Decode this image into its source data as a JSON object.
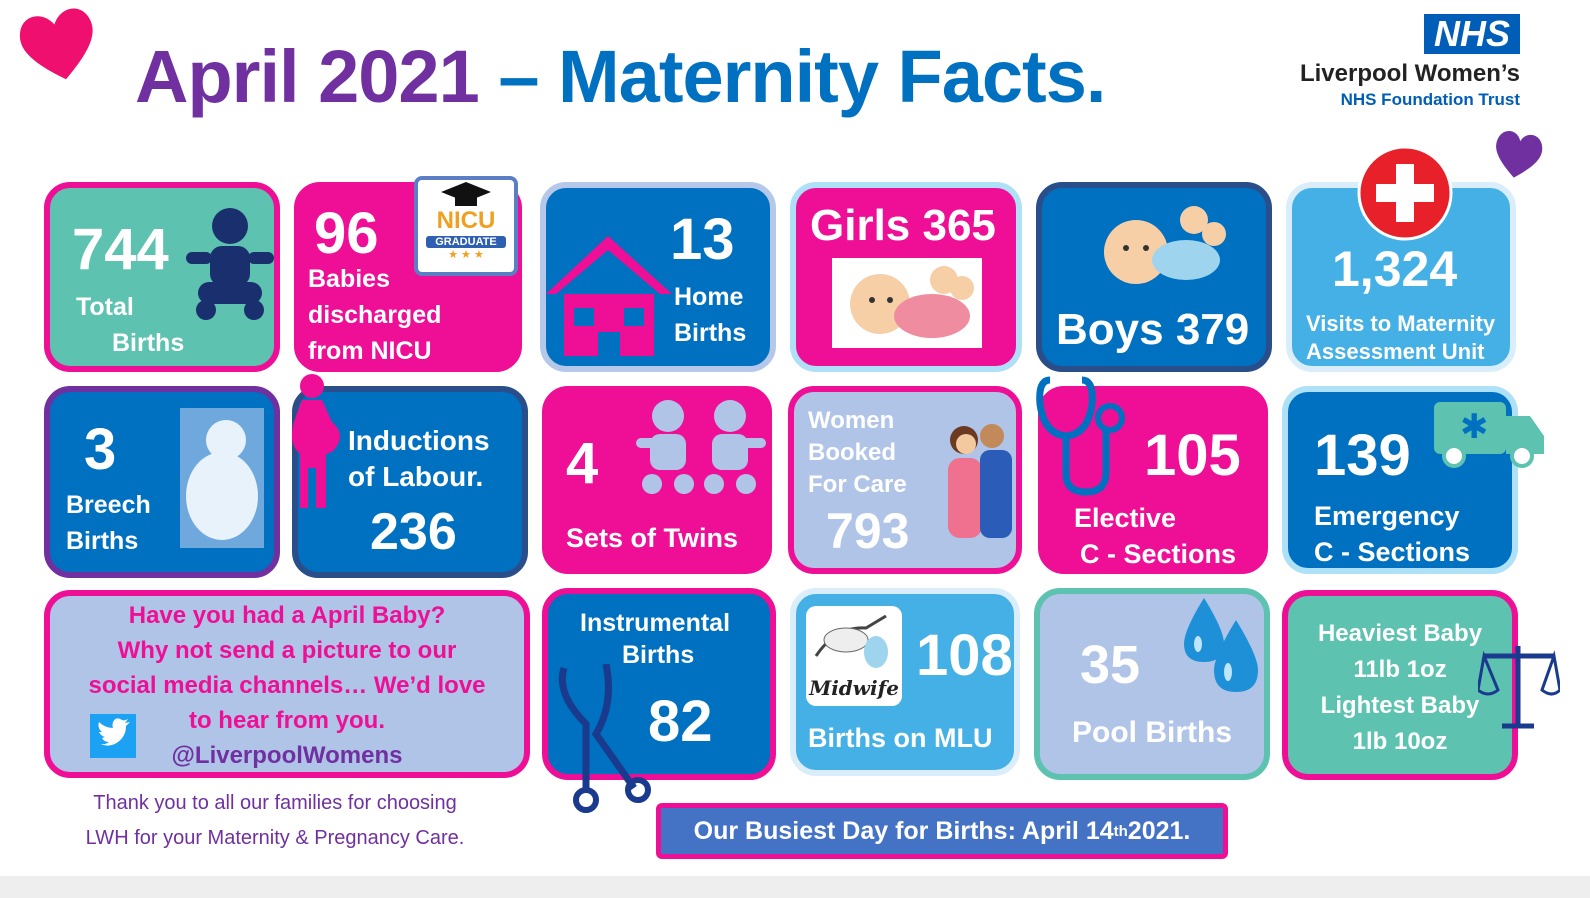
{
  "header": {
    "title_part1": "April 2021",
    "title_part2": "– Maternity Facts.",
    "logo_mark": "NHS",
    "trust_name": "Liverpool Women’s",
    "trust_sub": "NHS Foundation Trust"
  },
  "colors": {
    "pink": "#ee0f96",
    "purple": "#7030a0",
    "blue": "#0070c0",
    "teal": "#5dc2b0",
    "light_blue": "#44b0e6",
    "lavender": "#b0c4e8"
  },
  "stats": {
    "total_births": {
      "value": "744",
      "label1": "Total",
      "label2": "Births",
      "icon": "baby-icon"
    },
    "nicu": {
      "value": "96",
      "label1": "Babies",
      "label2": "discharged",
      "label3": "from NICU",
      "badge": "NICU",
      "badge_sub": "GRADUATE",
      "icon": "graduation-cap-icon"
    },
    "home": {
      "value": "13",
      "label1": "Home",
      "label2": "Births",
      "icon": "house-icon"
    },
    "girls": {
      "label": "Girls 365",
      "icon": "baby-girl-icon"
    },
    "boys": {
      "label": "Boys 379",
      "icon": "baby-boy-icon"
    },
    "mau": {
      "value": "1,324",
      "label1": "Visits to Maternity",
      "label2": "Assessment Unit",
      "icon": "medical-cross-icon"
    },
    "breech": {
      "value": "3",
      "label1": "Breech",
      "label2": "Births",
      "icon": "fetus-icon"
    },
    "inductions": {
      "label1": "Inductions",
      "label2": "of Labour.",
      "value": "236",
      "icon": "pregnant-woman-icon"
    },
    "twins": {
      "value": "4",
      "label": "Sets of Twins",
      "icon": "twins-icon"
    },
    "booked": {
      "label1": "Women",
      "label2": "Booked",
      "label3": "For Care",
      "value": "793",
      "icon": "midwife-mother-icon"
    },
    "elective": {
      "value": "105",
      "label1": "Elective",
      "label2": "C - Sections",
      "icon": "stethoscope-icon"
    },
    "emergency": {
      "value": "139",
      "label1": "Emergency",
      "label2": "C - Sections",
      "icon": "ambulance-icon"
    },
    "instrumental": {
      "label1": "Instrumental",
      "label2": "Births",
      "value": "82",
      "icon": "forceps-icon"
    },
    "mlu": {
      "value": "108",
      "label": "Births on MLU",
      "badge": "Midwife",
      "icon": "stork-icon"
    },
    "pool": {
      "value": "35",
      "label": "Pool Births",
      "icon": "water-drops-icon"
    },
    "weights": {
      "line1": "Heaviest Baby",
      "line2": "11lb 1oz",
      "line3": "Lightest Baby",
      "line4": "1lb 10oz",
      "icon": "scales-icon"
    }
  },
  "message": {
    "line1": "Have you had a April Baby?",
    "line2": "Why not send a picture to our",
    "line3": "social media channels… We’d love",
    "line4": "to hear from you.",
    "handle": "@LiverpoolWomens",
    "icon": "twitter-icon"
  },
  "thanks": {
    "line1": "Thank you to all our families for choosing",
    "line2": "LWH for your Maternity & Pregnancy Care."
  },
  "busiest": {
    "text": "Our Busiest Day for Births: April 14",
    "sup": "th",
    "year": " 2021."
  }
}
